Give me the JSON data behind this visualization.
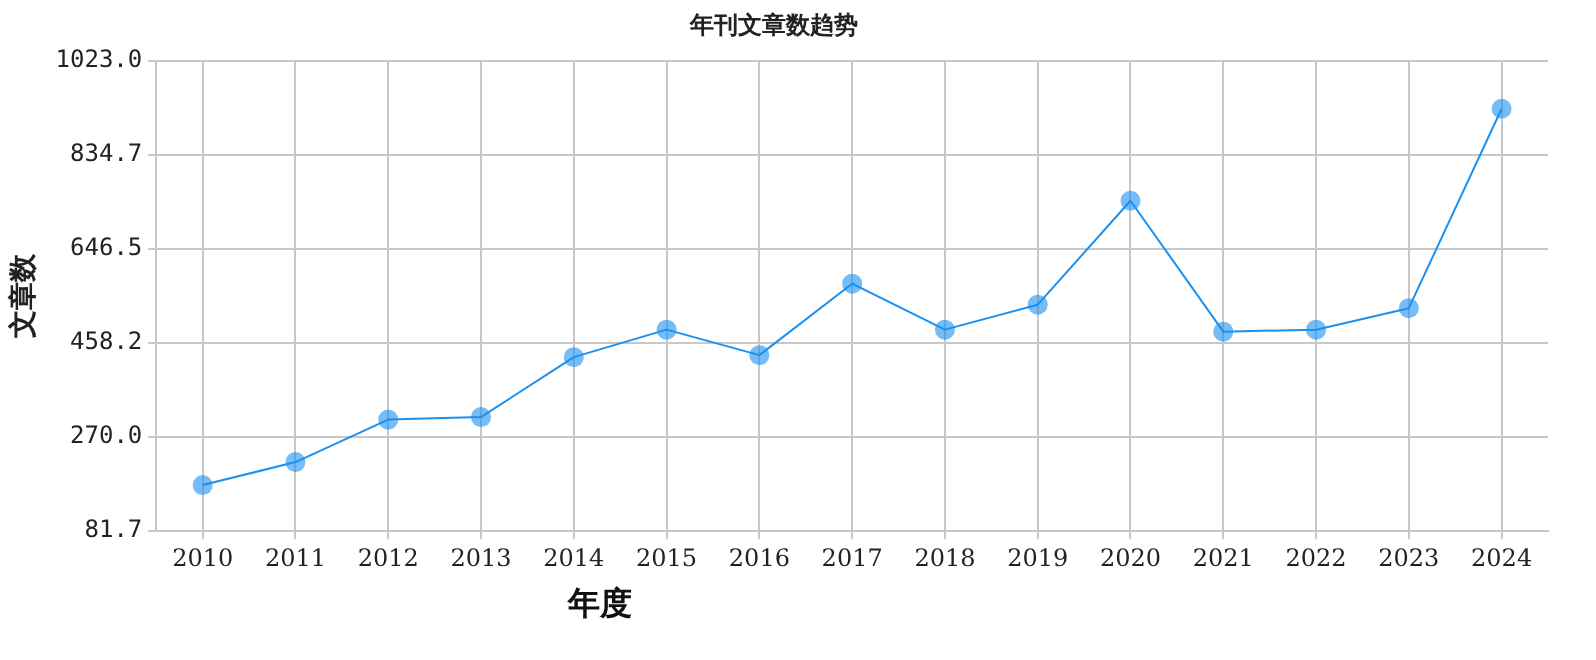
{
  "chart_data": {
    "type": "line",
    "title": "年刊文章数趋势",
    "xlabel": "年度",
    "ylabel": "文章数",
    "categories": [
      "2010",
      "2011",
      "2012",
      "2013",
      "2014",
      "2015",
      "2016",
      "2017",
      "2018",
      "2019",
      "2020",
      "2021",
      "2022",
      "2023",
      "2024"
    ],
    "series": [
      {
        "color": "#1a90f0",
        "values": [
          174,
          220,
          305,
          310,
          430,
          485,
          434,
          577,
          485,
          535,
          743,
          481,
          485,
          528,
          927
        ]
      }
    ],
    "ylim": [
      81.7,
      1023.0
    ],
    "yticks": [
      {
        "value": 81.7,
        "label": "81.7"
      },
      {
        "value": 270.0,
        "label": "270.0"
      },
      {
        "value": 458.2,
        "label": "458.2"
      },
      {
        "value": 646.5,
        "label": "646.5"
      },
      {
        "value": 834.7,
        "label": "834.7"
      },
      {
        "value": 1023.0,
        "label": "1023.0"
      }
    ],
    "grid": true,
    "legend": false,
    "marker": "circle",
    "line_style": "solid"
  }
}
